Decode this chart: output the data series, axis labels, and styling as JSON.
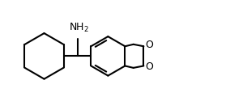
{
  "background_color": "#ffffff",
  "line_color": "#000000",
  "line_width": 1.5,
  "nh2_label": "NH$_2$",
  "o_label": "O",
  "font_size": 9,
  "fig_width": 2.84,
  "fig_height": 1.36,
  "dpi": 100,
  "xlim": [
    0.0,
    10.0
  ],
  "ylim": [
    0.0,
    5.0
  ]
}
